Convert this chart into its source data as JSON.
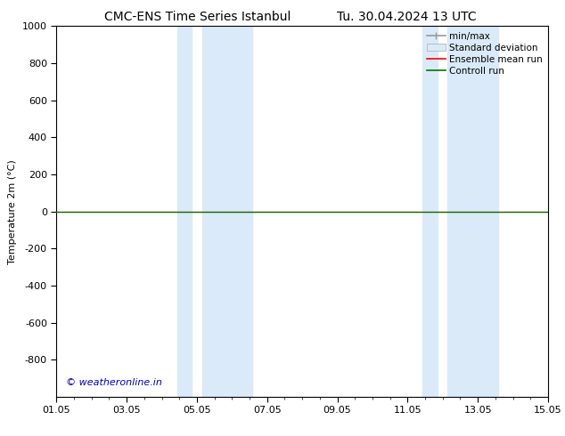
{
  "title_left": "CMC-ENS Time Series Istanbul",
  "title_right": "Tu. 30.04.2024 13 UTC",
  "ylabel": "Temperature 2m (°C)",
  "ylim_top": -1000,
  "ylim_bottom": 1000,
  "yticks": [
    -800,
    -600,
    -400,
    -200,
    0,
    200,
    400,
    600,
    800,
    1000
  ],
  "xlim_dates": [
    "01.05",
    "03.05",
    "05.05",
    "07.05",
    "09.05",
    "11.05",
    "13.05",
    "15.05"
  ],
  "xtick_positions": [
    0,
    2,
    4,
    6,
    8,
    10,
    12,
    14
  ],
  "x_num_start": 0,
  "x_num_end": 14,
  "shaded_bands": [
    {
      "x_start": 3.43,
      "x_end": 3.86
    },
    {
      "x_start": 4.14,
      "x_end": 5.57
    },
    {
      "x_start": 10.43,
      "x_end": 10.86
    },
    {
      "x_start": 11.14,
      "x_end": 12.57
    }
  ],
  "control_run_y": 0,
  "ensemble_mean_y": 0,
  "background_color": "#ffffff",
  "shade_color": "#daeaf8",
  "control_run_color": "#007700",
  "ensemble_mean_color": "#ff0000",
  "minmax_color": "#999999",
  "watermark_text": "© weatheronline.in",
  "watermark_color": "#0000bb",
  "title_fontsize": 10,
  "axis_fontsize": 8,
  "tick_fontsize": 8,
  "legend_fontsize": 7.5
}
